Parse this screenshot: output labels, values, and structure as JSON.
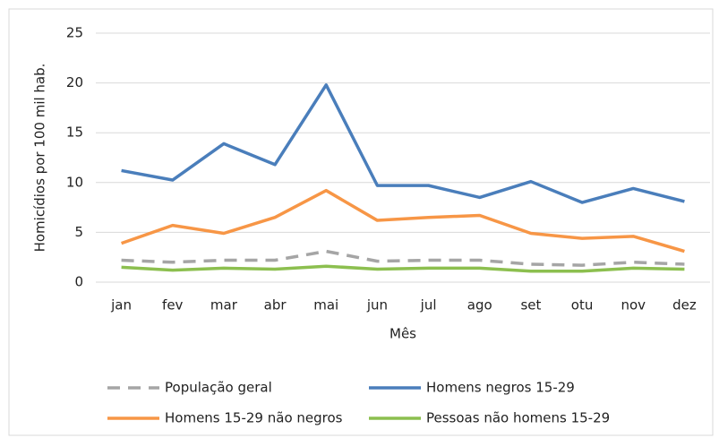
{
  "chart_data": {
    "type": "line",
    "y_label": "Homicídios por 100 mil hab.",
    "x_label": "Mês",
    "categories": [
      "jan",
      "fev",
      "mar",
      "abr",
      "mai",
      "jun",
      "jul",
      "ago",
      "set",
      "otu",
      "nov",
      "dez"
    ],
    "series": [
      {
        "name": "População geral",
        "color": "#a5a5a5",
        "dash": true,
        "values": [
          2.2,
          2.0,
          2.2,
          2.2,
          3.1,
          2.1,
          2.2,
          2.2,
          1.8,
          1.7,
          2.0,
          1.8
        ]
      },
      {
        "name": "Homens negros 15-29",
        "color": "#4a7ebb",
        "dash": false,
        "values": [
          11.2,
          10.25,
          13.9,
          11.8,
          19.8,
          9.7,
          9.7,
          8.5,
          10.1,
          8.0,
          9.4,
          8.1
        ]
      },
      {
        "name": "Homens 15-29 não negros",
        "color": "#f79646",
        "dash": false,
        "values": [
          3.9,
          5.7,
          4.9,
          6.5,
          9.2,
          6.2,
          6.5,
          6.7,
          4.9,
          4.4,
          4.6,
          3.1
        ]
      },
      {
        "name": "Pessoas não homens 15-29",
        "color": "#8cbf4f",
        "dash": false,
        "values": [
          1.5,
          1.2,
          1.4,
          1.3,
          1.6,
          1.3,
          1.4,
          1.4,
          1.1,
          1.1,
          1.4,
          1.3
        ]
      }
    ],
    "ylim": [
      0,
      25
    ],
    "yticks": [
      0,
      5,
      10,
      15,
      20,
      25
    ],
    "grid": true
  }
}
